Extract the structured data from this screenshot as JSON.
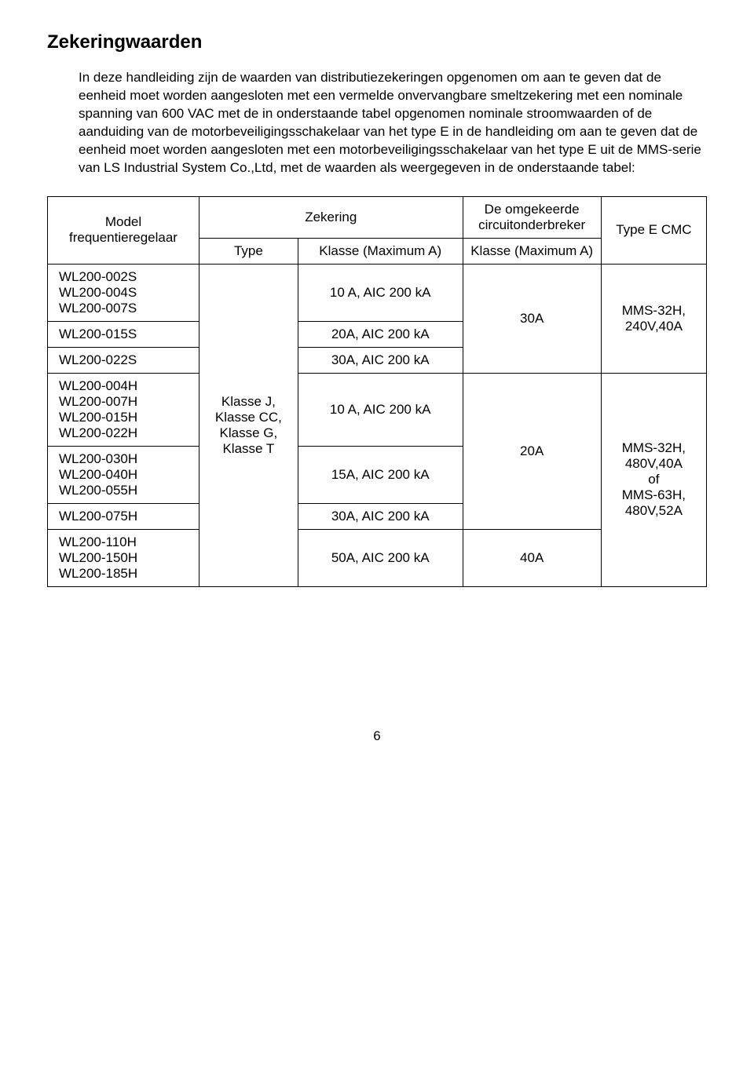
{
  "title": "Zekeringwaarden",
  "intro": "In deze handleiding zijn de waarden van distributiezekeringen opgenomen om aan te geven dat de eenheid moet worden aangesloten met een vermelde onvervangbare smeltzekering met een nominale spanning van 600 VAC met de in onderstaande tabel opgenomen nominale stroomwaarden of de aanduiding van de motorbeveiligingsschakelaar van het type E in de handleiding om aan te geven dat de eenheid moet worden aangesloten met een motorbeveiligingsschakelaar van het type E uit de MMS-serie van LS Industrial System Co.,Ltd, met de waarden als weergegeven in de onderstaande tabel:",
  "headers": {
    "model": "Model frequentieregelaar",
    "zekering": "Zekering",
    "type": "Type",
    "klasse_max": "Klasse (Maximum A)",
    "circuit": "De omgekeerde circuitonderbreker",
    "circuit_klasse": "Klasse (Maximum A)",
    "type_e": "Type E CMC"
  },
  "type_col": "Klasse J,\nKlasse CC,\nKlasse G,\nKlasse T",
  "rows": {
    "g1": {
      "models": "WL200-002S\nWL200-004S\nWL200-007S",
      "fuse": "10 A, AIC 200 kA"
    },
    "g2": {
      "models": "WL200-015S",
      "fuse": "20A, AIC 200 kA"
    },
    "g3": {
      "models": "WL200-022S",
      "fuse": "30A, AIC 200 kA"
    },
    "g4": {
      "models": "WL200-004H\nWL200-007H\nWL200-015H\nWL200-022H",
      "fuse": "10 A, AIC 200 kA"
    },
    "g5": {
      "models": "WL200-030H\nWL200-040H\nWL200-055H",
      "fuse": "15A, AIC 200 kA"
    },
    "g6": {
      "models": "WL200-075H",
      "fuse": "30A, AIC 200 kA"
    },
    "g7": {
      "models": "WL200-110H\nWL200-150H\nWL200-185H",
      "fuse": "50A, AIC 200 kA"
    }
  },
  "circuit_vals": {
    "v30": "30A",
    "v20": "20A",
    "v40": "40A"
  },
  "cmc_vals": {
    "a": "MMS-32H,\n240V,40A",
    "b": "MMS-32H,\n480V,40A\nof\nMMS-63H,\n480V,52A"
  },
  "page_number": "6"
}
